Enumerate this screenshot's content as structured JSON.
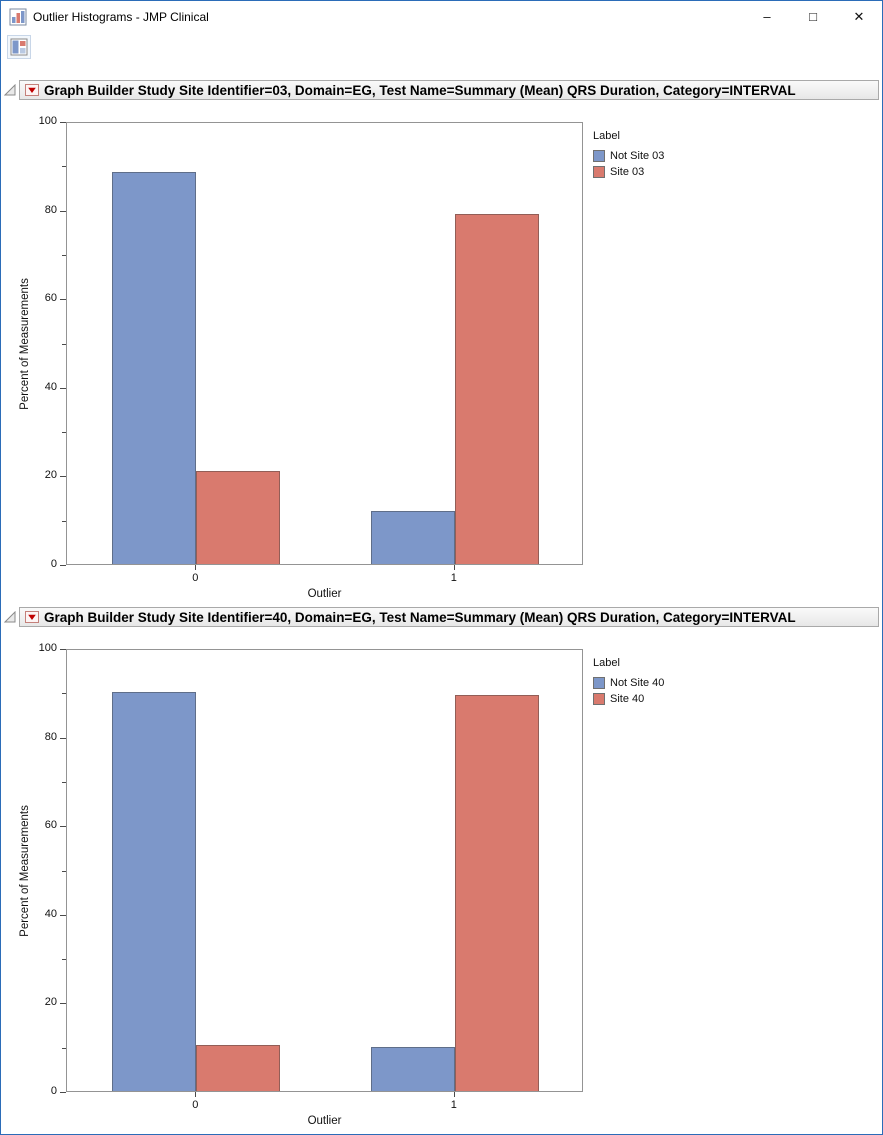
{
  "window": {
    "title": "Outlier Histograms - JMP Clinical",
    "controls": {
      "minimize": "–",
      "maximize": "□",
      "close": "✕"
    },
    "accent_border_color": "#2b6cb8"
  },
  "toolbar": {
    "icon": "report-layout-icon"
  },
  "sections": [
    {
      "title": "Graph Builder Study Site Identifier=03, Domain=EG, Test Name=Summary (Mean) QRS Duration, Category=INTERVAL"
    },
    {
      "title": "Graph Builder Study Site Identifier=40, Domain=EG, Test Name=Summary (Mean) QRS Duration, Category=INTERVAL"
    }
  ],
  "chart_data": [
    {
      "type": "bar",
      "title": "Graph Builder Study Site Identifier=03, Domain=EG, Test Name=Summary (Mean) QRS Duration, Category=INTERVAL",
      "categories": [
        "0",
        "1"
      ],
      "series": [
        {
          "name": "Not Site 03",
          "color": "#7D97C9",
          "values": [
            88.5,
            12
          ]
        },
        {
          "name": "Site 03",
          "color": "#D97A6E",
          "values": [
            21,
            79
          ]
        }
      ],
      "xlabel": "Outlier",
      "ylabel": "Percent of Measurements",
      "ylim": [
        0,
        100
      ],
      "yticks": [
        0,
        20,
        40,
        60,
        80,
        100
      ],
      "minor_tick_step": 10,
      "legend_title": "Label",
      "legend_position": "right",
      "grid": false
    },
    {
      "type": "bar",
      "title": "Graph Builder Study Site Identifier=40, Domain=EG, Test Name=Summary (Mean) QRS Duration, Category=INTERVAL",
      "categories": [
        "0",
        "1"
      ],
      "series": [
        {
          "name": "Not Site 40",
          "color": "#7D97C9",
          "values": [
            90,
            10
          ]
        },
        {
          "name": "Site 40",
          "color": "#D97A6E",
          "values": [
            10.5,
            89.5
          ]
        }
      ],
      "xlabel": "Outlier",
      "ylabel": "Percent of Measurements",
      "ylim": [
        0,
        100
      ],
      "yticks": [
        0,
        20,
        40,
        60,
        80,
        100
      ],
      "minor_tick_step": 10,
      "legend_title": "Label",
      "legend_position": "right",
      "grid": false
    }
  ]
}
